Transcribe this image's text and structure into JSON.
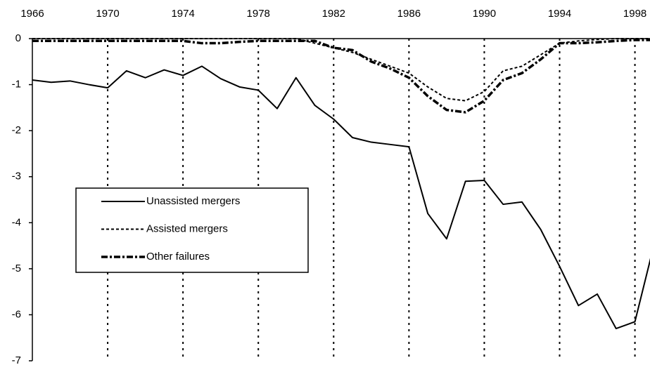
{
  "chart_data": {
    "type": "line",
    "x": [
      1966,
      1967,
      1968,
      1969,
      1970,
      1971,
      1972,
      1973,
      1974,
      1975,
      1976,
      1977,
      1978,
      1979,
      1980,
      1981,
      1982,
      1983,
      1984,
      1985,
      1986,
      1987,
      1988,
      1989,
      1990,
      1991,
      1992,
      1993,
      1994,
      1995,
      1996,
      1997,
      1998,
      1999
    ],
    "series": [
      {
        "name": "Unassisted mergers",
        "color": "#000000",
        "style": "solid",
        "values": [
          -0.9,
          -0.95,
          -0.92,
          -1.0,
          -1.07,
          -0.7,
          -0.85,
          -0.68,
          -0.8,
          -0.6,
          -0.87,
          -1.05,
          -1.12,
          -1.52,
          -0.85,
          -1.45,
          -1.75,
          -2.15,
          -2.25,
          -2.3,
          -2.35,
          -3.8,
          -4.35,
          -3.1,
          -3.08,
          -3.6,
          -3.55,
          -4.15,
          -4.95,
          -5.8,
          -5.55,
          -6.3,
          -6.15,
          -4.5
        ]
      },
      {
        "name": "Assisted mergers",
        "color": "#000000",
        "style": "dashed",
        "values": [
          0,
          0,
          0,
          0,
          0,
          0,
          0,
          0,
          0,
          0,
          0,
          0,
          0,
          0,
          0,
          -0.1,
          -0.2,
          -0.3,
          -0.45,
          -0.6,
          -0.75,
          -1.05,
          -1.3,
          -1.35,
          -1.15,
          -0.7,
          -0.6,
          -0.35,
          -0.1,
          -0.05,
          -0.02,
          0,
          0,
          0
        ]
      },
      {
        "name": "Other failures",
        "color": "#000000",
        "style": "dashdot",
        "values": [
          -0.05,
          -0.05,
          -0.05,
          -0.05,
          -0.05,
          -0.05,
          -0.05,
          -0.05,
          -0.05,
          -0.1,
          -0.1,
          -0.07,
          -0.05,
          -0.05,
          -0.05,
          -0.05,
          -0.2,
          -0.25,
          -0.5,
          -0.65,
          -0.85,
          -1.25,
          -1.55,
          -1.6,
          -1.35,
          -0.9,
          -0.75,
          -0.45,
          -0.1,
          -0.1,
          -0.08,
          -0.05,
          -0.03,
          -0.03
        ]
      }
    ],
    "xlim": [
      1966,
      1998.8
    ],
    "xticks": [
      1966,
      1970,
      1974,
      1978,
      1982,
      1986,
      1990,
      1994,
      1998
    ],
    "ylim": [
      -7,
      0
    ],
    "yticks": [
      0,
      -1,
      -2,
      -3,
      -4,
      -5,
      -6,
      -7
    ],
    "grid": "x",
    "legend": "lower left"
  }
}
